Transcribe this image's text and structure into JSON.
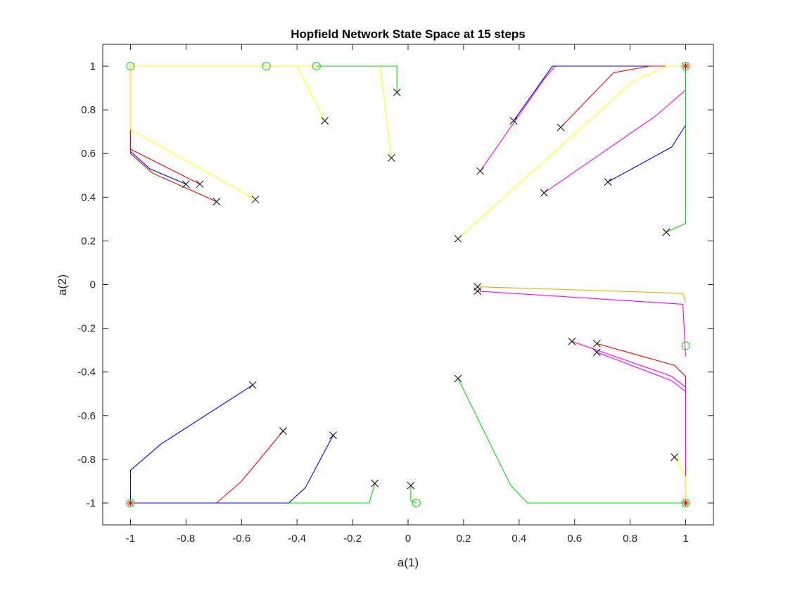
{
  "chart_data": {
    "type": "line",
    "title": "Hopfield Network State Space at 15 steps",
    "xlabel": "a(1)",
    "ylabel": "a(2)",
    "xlim": [
      -1.1,
      1.1
    ],
    "ylim": [
      -1.1,
      1.1
    ],
    "xticks": [
      "-1",
      "-0.8",
      "-0.6",
      "-0.4",
      "-0.2",
      "0",
      "0.2",
      "0.4",
      "0.6",
      "0.8",
      "1"
    ],
    "xtick_values": [
      -1,
      -0.8,
      -0.6,
      -0.4,
      -0.2,
      0,
      0.2,
      0.4,
      0.6,
      0.8,
      1
    ],
    "yticks": [
      "1",
      "0.8",
      "0.6",
      "0.4",
      "0.2",
      "0",
      "-0.2",
      "-0.4",
      "-0.6",
      "-0.8",
      "-1"
    ],
    "ytick_values": [
      1,
      0.8,
      0.6,
      0.4,
      0.2,
      0,
      -0.2,
      -0.4,
      -0.6,
      -0.8,
      -1
    ],
    "grid": false,
    "start_marker": "x",
    "end_marker": "o",
    "colors": {
      "red": "#ff0000",
      "blue": "#0000ff",
      "green": "#00dd00",
      "yellow": "#ffff00",
      "magenta": "#ff00ff",
      "orange": "#f2a900",
      "marker": "#000000",
      "end_marker": "#00dd00"
    },
    "trajectories": [
      {
        "color": "blue",
        "points": [
          [
            -0.8,
            0.46
          ],
          [
            -0.93,
            0.53
          ],
          [
            -1,
            0.61
          ],
          [
            -1,
            1
          ]
        ]
      },
      {
        "color": "red",
        "points": [
          [
            -0.75,
            0.46
          ],
          [
            -1,
            0.62
          ],
          [
            -1,
            1
          ]
        ]
      },
      {
        "color": "red",
        "points": [
          [
            -0.69,
            0.38
          ],
          [
            -0.92,
            0.51
          ],
          [
            -1,
            0.6
          ],
          [
            -1,
            1
          ]
        ]
      },
      {
        "color": "yellow",
        "points": [
          [
            -0.55,
            0.39
          ],
          [
            -1,
            0.71
          ],
          [
            -1,
            1
          ]
        ]
      },
      {
        "color": "yellow",
        "points": [
          [
            -0.3,
            0.75
          ],
          [
            -0.4,
            1
          ],
          [
            -1,
            1
          ]
        ]
      },
      {
        "color": "yellow",
        "points": [
          [
            -0.06,
            0.58
          ],
          [
            -0.1,
            1
          ],
          [
            -0.51,
            1
          ]
        ]
      },
      {
        "color": "green",
        "points": [
          [
            -0.04,
            0.88
          ],
          [
            -0.04,
            1
          ],
          [
            -0.33,
            1
          ]
        ]
      },
      {
        "color": "magenta",
        "points": [
          [
            0.26,
            0.52
          ],
          [
            0.49,
            0.94
          ],
          [
            0.53,
            1
          ],
          [
            1,
            1
          ]
        ]
      },
      {
        "color": "blue",
        "points": [
          [
            0.38,
            0.75
          ],
          [
            0.52,
            1
          ],
          [
            1,
            1
          ]
        ]
      },
      {
        "color": "red",
        "points": [
          [
            0.55,
            0.72
          ],
          [
            0.74,
            0.97
          ],
          [
            0.87,
            1
          ],
          [
            1,
            1
          ]
        ]
      },
      {
        "color": "yellow",
        "points": [
          [
            0.18,
            0.21
          ],
          [
            0.81,
            0.93
          ],
          [
            0.93,
            1
          ],
          [
            1,
            1
          ]
        ]
      },
      {
        "color": "magenta",
        "points": [
          [
            0.49,
            0.42
          ],
          [
            0.89,
            0.77
          ],
          [
            1,
            0.89
          ],
          [
            1,
            1
          ]
        ]
      },
      {
        "color": "blue",
        "points": [
          [
            0.72,
            0.47
          ],
          [
            0.95,
            0.63
          ],
          [
            1,
            0.73
          ],
          [
            1,
            1
          ]
        ]
      },
      {
        "color": "green",
        "points": [
          [
            0.93,
            0.24
          ],
          [
            1,
            0.28
          ],
          [
            1,
            1
          ]
        ]
      },
      {
        "color": "orange",
        "points": [
          [
            0.25,
            -0.01
          ],
          [
            0.99,
            -0.04
          ],
          [
            1,
            -0.08
          ]
        ]
      },
      {
        "color": "magenta",
        "points": [
          [
            0.25,
            -0.03
          ],
          [
            0.99,
            -0.09
          ],
          [
            1,
            -0.33
          ]
        ]
      },
      {
        "color": "red",
        "points": [
          [
            0.68,
            -0.27
          ],
          [
            0.96,
            -0.37
          ],
          [
            1,
            -0.42
          ],
          [
            1,
            -1
          ]
        ]
      },
      {
        "color": "magenta",
        "points": [
          [
            0.59,
            -0.26
          ],
          [
            0.95,
            -0.42
          ],
          [
            1,
            -0.47
          ],
          [
            1,
            -1
          ]
        ]
      },
      {
        "color": "magenta",
        "points": [
          [
            0.68,
            -0.31
          ],
          [
            0.95,
            -0.44
          ],
          [
            1,
            -0.49
          ],
          [
            1,
            -1
          ]
        ]
      },
      {
        "color": "yellow",
        "points": [
          [
            0.96,
            -0.79
          ],
          [
            1,
            -0.88
          ],
          [
            1,
            -1
          ]
        ]
      },
      {
        "color": "green",
        "points": [
          [
            0.18,
            -0.43
          ],
          [
            0.37,
            -0.92
          ],
          [
            0.43,
            -1
          ],
          [
            1,
            -1
          ]
        ]
      },
      {
        "color": "blue",
        "points": [
          [
            -0.56,
            -0.46
          ],
          [
            -0.89,
            -0.73
          ],
          [
            -1,
            -0.85
          ],
          [
            -1,
            -1
          ]
        ]
      },
      {
        "color": "red",
        "points": [
          [
            -0.45,
            -0.67
          ],
          [
            -0.6,
            -0.9
          ],
          [
            -0.69,
            -1
          ],
          [
            -1,
            -1
          ]
        ]
      },
      {
        "color": "blue",
        "points": [
          [
            -0.27,
            -0.69
          ],
          [
            -0.37,
            -0.93
          ],
          [
            -0.43,
            -1
          ],
          [
            -1,
            -1
          ]
        ]
      },
      {
        "color": "green",
        "points": [
          [
            -0.12,
            -0.91
          ],
          [
            -0.14,
            -1
          ],
          [
            -0.43,
            -1
          ]
        ]
      },
      {
        "color": "green",
        "points": [
          [
            0.01,
            -0.92
          ],
          [
            0.01,
            -0.99
          ],
          [
            0.03,
            -1
          ]
        ]
      }
    ],
    "end_points": [
      [
        -1,
        1
      ],
      [
        -0.51,
        1
      ],
      [
        -0.33,
        1
      ],
      [
        1,
        1
      ],
      [
        1,
        -0.28
      ],
      [
        1,
        -1
      ],
      [
        -1,
        -1
      ],
      [
        0.03,
        -1
      ]
    ],
    "corner_stars": [
      [
        1,
        1
      ],
      [
        1,
        -1
      ],
      [
        -1,
        -1
      ]
    ]
  }
}
